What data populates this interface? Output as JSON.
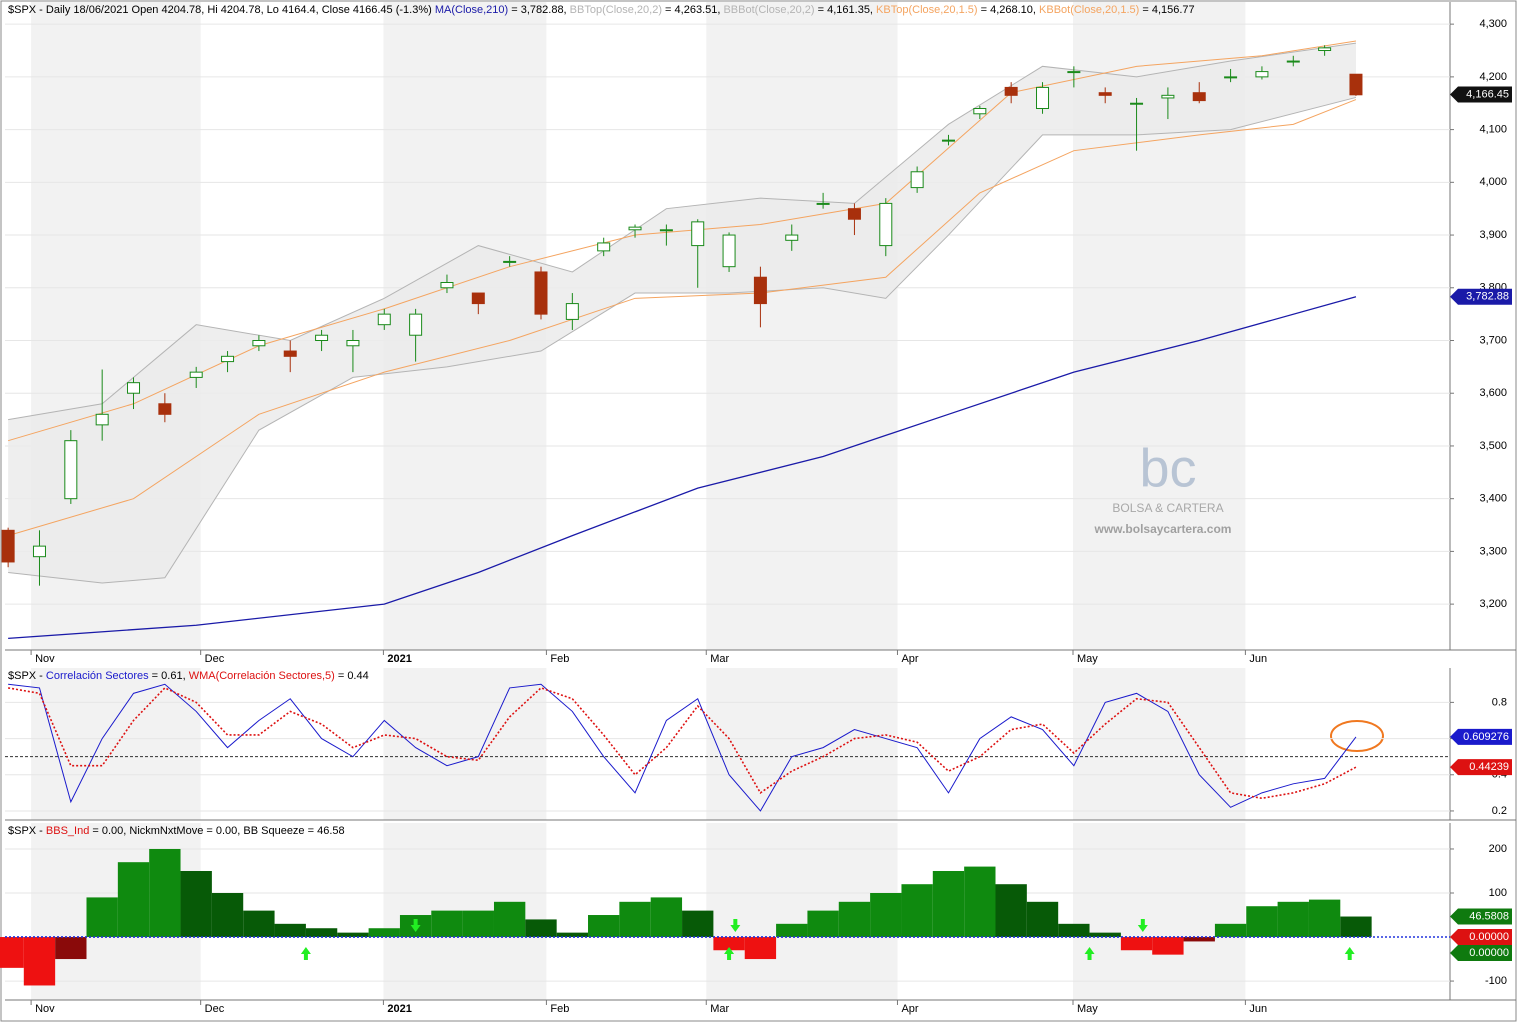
{
  "chart_data": [
    {
      "type": "candlestick",
      "title": "$SPX - Daily 18/06/2021 Open 4204.78, Hi 4204.78, Lo 4164.4, Close 4166.45 (-1.3%) ",
      "open": [
        3340,
        3290,
        3400,
        3540,
        3600,
        3580,
        3630,
        3660,
        3690,
        3680,
        3700,
        3690,
        3730,
        3710,
        3800,
        3790,
        3850,
        3830,
        3740,
        3870,
        3910,
        3910,
        3880,
        3840,
        3820,
        3890,
        3960,
        3950,
        3880,
        3990,
        4080,
        4130,
        4180,
        4140,
        4210,
        4170,
        4150,
        4160,
        4170,
        4200,
        4200,
        4230,
        4250,
        4205
      ],
      "high": [
        3345,
        3340,
        3530,
        3645,
        3630,
        3600,
        3650,
        3680,
        3710,
        3700,
        3720,
        3720,
        3760,
        3760,
        3825,
        3790,
        3860,
        3840,
        3790,
        3895,
        3920,
        3920,
        3930,
        3905,
        3840,
        3920,
        3980,
        3960,
        3970,
        4030,
        4090,
        4145,
        4190,
        4190,
        4220,
        4180,
        4160,
        4180,
        4190,
        4215,
        4220,
        4240,
        4260,
        4205
      ],
      "low": [
        3270,
        3235,
        3390,
        3510,
        3570,
        3545,
        3610,
        3640,
        3680,
        3640,
        3680,
        3640,
        3720,
        3660,
        3790,
        3750,
        3840,
        3740,
        3720,
        3860,
        3895,
        3880,
        3800,
        3830,
        3725,
        3870,
        3950,
        3900,
        3860,
        3980,
        4070,
        4120,
        4150,
        4130,
        4180,
        4150,
        4060,
        4120,
        4150,
        4190,
        4195,
        4220,
        4240,
        4164
      ],
      "close": [
        3280,
        3310,
        3510,
        3560,
        3620,
        3560,
        3640,
        3670,
        3700,
        3670,
        3710,
        3700,
        3750,
        3750,
        3810,
        3770,
        3850,
        3750,
        3770,
        3885,
        3915,
        3910,
        3925,
        3900,
        3770,
        3900,
        3960,
        3930,
        3960,
        4020,
        4080,
        4140,
        4165,
        4180,
        4210,
        4165,
        4150,
        4165,
        4155,
        4200,
        4210,
        4230,
        4255,
        4166
      ],
      "up_color": "#1a8a1a",
      "down_color": "#a8300c",
      "lines": [
        {
          "name": "MA(Close,210)",
          "legend_value": " = 3,782.88, ",
          "color": "#1a1aa8",
          "width": 1.3,
          "x": [
            0,
            6,
            12,
            15,
            18,
            22,
            26,
            30,
            34,
            38,
            43
          ],
          "values": [
            3135,
            3160,
            3200,
            3260,
            3330,
            3420,
            3480,
            3560,
            3640,
            3700,
            3783
          ]
        },
        {
          "name": "BBTop(Close,20,2)",
          "legend_value": " = 4,263.51, ",
          "color": "#b4b4b4",
          "width": 1,
          "band": "top",
          "x": [
            0,
            3,
            6,
            9,
            12,
            15,
            18,
            21,
            24,
            27,
            30,
            33,
            36,
            39,
            43
          ],
          "values": [
            3550,
            3580,
            3730,
            3700,
            3780,
            3880,
            3830,
            3950,
            3970,
            3960,
            4110,
            4220,
            4200,
            4230,
            4264
          ]
        },
        {
          "name": "BBBot(Close,20,2)",
          "legend_value": " = 4,161.35, ",
          "color": "#b4b4b4",
          "width": 1,
          "band": "bottom",
          "x": [
            0,
            3,
            5,
            8,
            11,
            14,
            17,
            20,
            23,
            26,
            28,
            30,
            33,
            36,
            39,
            43
          ],
          "values": [
            3260,
            3240,
            3250,
            3530,
            3630,
            3650,
            3680,
            3790,
            3790,
            3800,
            3780,
            3900,
            4090,
            4090,
            4100,
            4161
          ]
        },
        {
          "name": "KBTop(Close,20,1.5)",
          "legend_value": " = 4,268.10, ",
          "color": "#f4a460",
          "width": 1,
          "x": [
            0,
            4,
            8,
            12,
            16,
            20,
            24,
            28,
            32,
            36,
            40,
            43
          ],
          "values": [
            3510,
            3580,
            3690,
            3760,
            3840,
            3900,
            3920,
            3960,
            4170,
            4220,
            4240,
            4268
          ]
        },
        {
          "name": "KBBot(Close,20,1.5)",
          "legend_value": " = 4,156.77",
          "color": "#f4a460",
          "width": 1,
          "x": [
            0,
            4,
            8,
            12,
            16,
            20,
            24,
            28,
            31,
            34,
            38,
            41,
            43
          ],
          "values": [
            3330,
            3400,
            3560,
            3640,
            3700,
            3780,
            3790,
            3820,
            3980,
            4060,
            4090,
            4110,
            4157
          ]
        }
      ],
      "xlim": [
        -0.1,
        46
      ],
      "xticks": [
        {
          "value": 0.86,
          "label": "Nov"
        },
        {
          "value": 6.27,
          "label": "Dec"
        },
        {
          "value": 12.1,
          "label": "2021",
          "bold": true
        },
        {
          "value": 17.3,
          "label": "Feb"
        },
        {
          "value": 22.4,
          "label": "Mar"
        },
        {
          "value": 28.5,
          "label": "Apr"
        },
        {
          "value": 34.1,
          "label": "May"
        },
        {
          "value": 39.6,
          "label": "Jun"
        }
      ],
      "ylim": [
        3113,
        4342
      ],
      "yticks": [
        {
          "value": 3200,
          "label": "3,200"
        },
        {
          "value": 3300,
          "label": "3,300"
        },
        {
          "value": 3400,
          "label": "3,400"
        },
        {
          "value": 3500,
          "label": "3,500"
        },
        {
          "value": 3600,
          "label": "3,600"
        },
        {
          "value": 3700,
          "label": "3,700"
        },
        {
          "value": 3800,
          "label": "3,800"
        },
        {
          "value": 3900,
          "label": "3,900"
        },
        {
          "value": 4000,
          "label": "4,000"
        },
        {
          "value": 4100,
          "label": "4,100"
        },
        {
          "value": 4200,
          "label": "4,200"
        },
        {
          "value": 4300,
          "label": "4,300"
        }
      ],
      "grid": true,
      "tags": [
        {
          "value": 4166.45,
          "label": "4,166.45",
          "color": "#111111"
        },
        {
          "value": 3782.88,
          "label": "3,782.88",
          "color": "#1a1aa8"
        }
      ],
      "watermark": {
        "logo": "bc",
        "name": "BOLSA & CARTERA",
        "url": "www.bolsaycartera.com"
      }
    },
    {
      "type": "line",
      "title": "$SPX - ",
      "lines": [
        {
          "name": "Correlación Sectores",
          "legend_value": " = 0.61, ",
          "color": "#1a1acc",
          "width": 1,
          "values": [
            0.9,
            0.88,
            0.25,
            0.6,
            0.85,
            0.9,
            0.75,
            0.55,
            0.7,
            0.82,
            0.6,
            0.5,
            0.7,
            0.55,
            0.45,
            0.5,
            0.88,
            0.9,
            0.75,
            0.5,
            0.3,
            0.7,
            0.82,
            0.4,
            0.2,
            0.5,
            0.55,
            0.65,
            0.6,
            0.55,
            0.3,
            0.6,
            0.72,
            0.65,
            0.45,
            0.8,
            0.85,
            0.75,
            0.4,
            0.22,
            0.3,
            0.35,
            0.38,
            0.609
          ]
        },
        {
          "name": "WMA(Correlación Sectores,5)",
          "legend_value": " = 0.44",
          "color": "#dd1111",
          "width": 1.6,
          "dash": true,
          "values": [
            0.88,
            0.85,
            0.45,
            0.45,
            0.7,
            0.88,
            0.8,
            0.62,
            0.62,
            0.75,
            0.68,
            0.55,
            0.62,
            0.6,
            0.5,
            0.48,
            0.72,
            0.88,
            0.82,
            0.62,
            0.4,
            0.55,
            0.78,
            0.6,
            0.3,
            0.42,
            0.5,
            0.6,
            0.62,
            0.58,
            0.42,
            0.5,
            0.65,
            0.68,
            0.52,
            0.68,
            0.82,
            0.8,
            0.55,
            0.3,
            0.27,
            0.3,
            0.35,
            0.442
          ]
        }
      ],
      "xlim": [
        -0.1,
        46
      ],
      "ylim": [
        0.15,
        0.99
      ],
      "yticks": [
        0.2,
        0.4,
        0.6,
        0.8
      ],
      "reference": 0.5,
      "grid": true,
      "tags": [
        {
          "value": 0.609276,
          "label": "0.609276",
          "color": "#1a1acc"
        },
        {
          "value": 0.44239,
          "label": "0.44239",
          "color": "#dd1111"
        }
      ]
    },
    {
      "type": "histogram",
      "title": "$SPX - ",
      "header": [
        {
          "text": "BBS_Ind",
          "color": "#dd1111"
        },
        {
          "text": " = 0.00, NickmNxtMove = 0.00, BB Squeeze = 46.58",
          "color": "#000000"
        }
      ],
      "values": [
        -70,
        -110,
        -50,
        90,
        170,
        200,
        150,
        100,
        60,
        30,
        20,
        10,
        20,
        50,
        60,
        60,
        80,
        40,
        10,
        50,
        80,
        90,
        60,
        -30,
        -50,
        30,
        60,
        80,
        100,
        120,
        150,
        160,
        120,
        80,
        30,
        10,
        -30,
        -40,
        -10,
        30,
        70,
        80,
        85,
        46.58
      ],
      "colors": {
        "rise_pos": "#0f8a0f",
        "fall_pos": "#075a07",
        "rise_neg": "#ee1111",
        "fall_neg": "#8a0a0a"
      },
      "up_signals": [
        9.5,
        23,
        34.5,
        42.8
      ],
      "down_signals": [
        13,
        23.2,
        36.2
      ],
      "xlim": [
        -0.1,
        46
      ],
      "xticks": [
        {
          "value": 0.86,
          "label": "Nov"
        },
        {
          "value": 6.27,
          "label": "Dec"
        },
        {
          "value": 12.1,
          "label": "2021",
          "bold": true
        },
        {
          "value": 17.3,
          "label": "Feb"
        },
        {
          "value": 22.4,
          "label": "Mar"
        },
        {
          "value": 28.5,
          "label": "Apr"
        },
        {
          "value": 34.1,
          "label": "May"
        },
        {
          "value": 39.6,
          "label": "Jun"
        }
      ],
      "ylim": [
        -143,
        259
      ],
      "yticks": [
        -100,
        100,
        200
      ],
      "reference": 0,
      "grid": true,
      "tags": [
        {
          "value": 46.5808,
          "label": "46.5808",
          "color": "#0f7a0f"
        },
        {
          "value": 0,
          "label": "0.00000",
          "color": "#dd1111"
        },
        {
          "value": 0,
          "label": "0.00000",
          "color": "#0f7a0f"
        }
      ]
    }
  ]
}
